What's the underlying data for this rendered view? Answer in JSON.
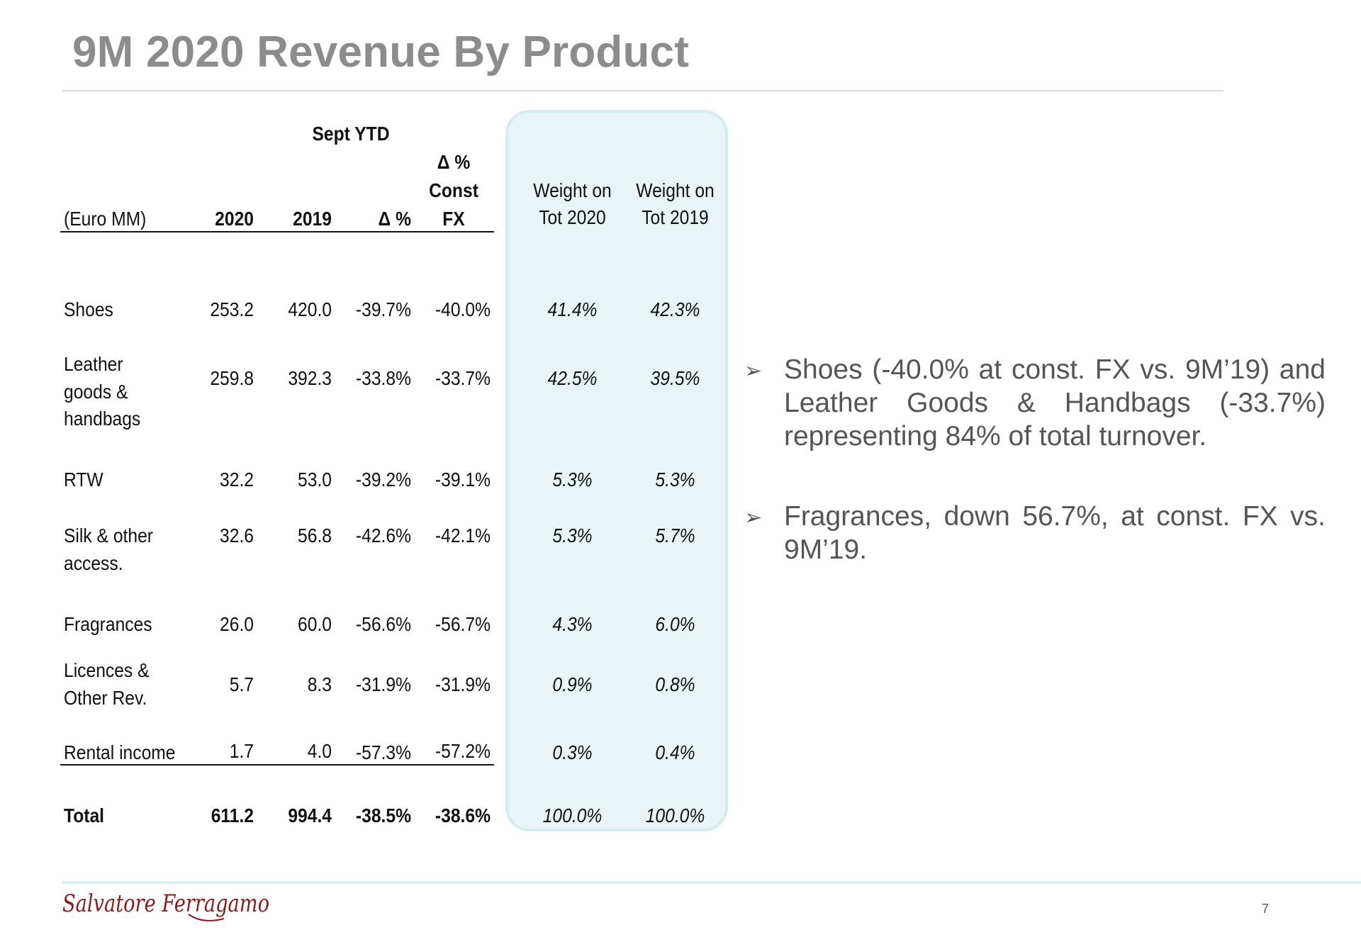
{
  "slide": {
    "title": "9M 2020 Revenue By Product",
    "page_number": "7",
    "logo_text": "Salvatore Ferragamo"
  },
  "table": {
    "group_header": "Sept YTD",
    "headers": {
      "unit": "(Euro MM)",
      "y2020": "2020",
      "y2019": "2019",
      "delta": "Δ %",
      "delta_fx_l1": "Δ %",
      "delta_fx_l2": "Const",
      "delta_fx_l3": "FX",
      "w2020_l1": "Weight on",
      "w2020_l2": "Tot 2020",
      "w2019_l1": "Weight on",
      "w2019_l2": "Tot 2019"
    },
    "rows": [
      {
        "label": [
          "Shoes"
        ],
        "v2020": "253.2",
        "v2019": "420.0",
        "delta": "-39.7%",
        "delta_fx": "-40.0%",
        "w2020": "41.4%",
        "w2019": "42.3%"
      },
      {
        "label": [
          "Leather",
          "goods &",
          "handbags"
        ],
        "v2020": "259.8",
        "v2019": "392.3",
        "delta": "-33.8%",
        "delta_fx": "-33.7%",
        "w2020": "42.5%",
        "w2019": "39.5%"
      },
      {
        "label": [
          "RTW"
        ],
        "v2020": "32.2",
        "v2019": "53.0",
        "delta": "-39.2%",
        "delta_fx": "-39.1%",
        "w2020": "5.3%",
        "w2019": "5.3%"
      },
      {
        "label": [
          "Silk & other",
          "access."
        ],
        "v2020": "32.6",
        "v2019": "56.8",
        "delta": "-42.6%",
        "delta_fx": "-42.1%",
        "w2020": "5.3%",
        "w2019": "5.7%"
      },
      {
        "label": [
          "Fragrances"
        ],
        "v2020": "26.0",
        "v2019": "60.0",
        "delta": "-56.6%",
        "delta_fx": "-56.7%",
        "w2020": "4.3%",
        "w2019": "6.0%"
      },
      {
        "label": [
          "Licences &",
          "Other Rev."
        ],
        "v2020": "5.7",
        "v2019": "8.3",
        "delta": "-31.9%",
        "delta_fx": "-31.9%",
        "w2020": "0.9%",
        "w2019": "0.8%"
      },
      {
        "label": [
          "Rental income"
        ],
        "v2020": "1.7",
        "v2019": "4.0",
        "delta": "-57.3%",
        "delta_fx": "-57.2%",
        "w2020": "0.3%",
        "w2019": "0.4%"
      }
    ],
    "total": {
      "label": "Total",
      "v2020": "611.2",
      "v2019": "994.4",
      "delta": "-38.5%",
      "delta_fx": "-38.6%",
      "w2020": "100.0%",
      "w2019": "100.0%"
    }
  },
  "bullets": [
    "Shoes (-40.0% at const. FX vs. 9M’19) and Leather Goods & Handbags (-33.7%) representing 84% of total turnover.",
    "Fragrances, down 56.7%, at const. FX vs. 9M’19."
  ],
  "colors": {
    "title": "#8c8c8c",
    "panel_fill": "#e9f4f7",
    "panel_border": "#d2ecf3",
    "logo": "#8b1a1a",
    "footer_rule": "#d9eef6"
  }
}
